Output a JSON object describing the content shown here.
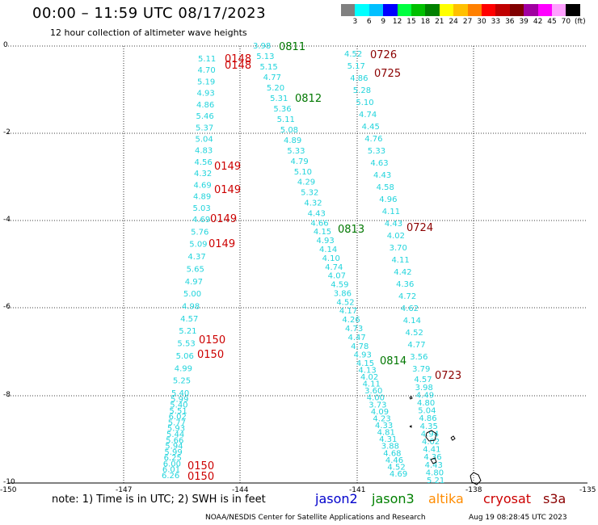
{
  "header": {
    "title": "00:00 – 11:59 UTC 08/17/2023",
    "subtitle": "12 hour collection of altimeter wave heights"
  },
  "legend": {
    "colors": [
      "#808080",
      "#00ffff",
      "#00c0ff",
      "#0000ff",
      "#00ff40",
      "#00c000",
      "#008000",
      "#ffff00",
      "#ffc000",
      "#ff8000",
      "#ff0000",
      "#c00000",
      "#800000",
      "#a000a0",
      "#ff00ff",
      "#ffa0ff",
      "#000000"
    ],
    "labels": [
      "3",
      "6",
      "9",
      "12",
      "15",
      "18",
      "21",
      "24",
      "27",
      "30",
      "33",
      "36",
      "39",
      "42",
      "45",
      "70",
      "(ft)"
    ]
  },
  "axes": {
    "x_ticks": [
      "-150",
      "-147",
      "-144",
      "-141",
      "-138",
      "-135"
    ],
    "y_ticks": [
      "0",
      "-2",
      "-4",
      "-6",
      "-8",
      "-10"
    ]
  },
  "passes": [
    {
      "label": "0148",
      "color": "#cc0000"
    },
    {
      "label": "0148",
      "color": "#cc0000"
    },
    {
      "label": "0149",
      "color": "#cc0000"
    },
    {
      "label": "0149",
      "color": "#cc0000"
    },
    {
      "label": "0149",
      "color": "#cc0000"
    },
    {
      "label": "0149",
      "color": "#cc0000"
    },
    {
      "label": "0150",
      "color": "#cc0000"
    },
    {
      "label": "0150",
      "color": "#cc0000"
    },
    {
      "label": "0150",
      "color": "#cc0000"
    },
    {
      "label": "0150",
      "color": "#cc0000"
    },
    {
      "label": "0811",
      "color": "#007700"
    },
    {
      "label": "0812",
      "color": "#007700"
    },
    {
      "label": "0813",
      "color": "#007700"
    },
    {
      "label": "0814",
      "color": "#007700"
    },
    {
      "label": "0726",
      "color": "#8b0000"
    },
    {
      "label": "0725",
      "color": "#8b0000"
    },
    {
      "label": "0724",
      "color": "#8b0000"
    },
    {
      "label": "0723",
      "color": "#8b0000"
    }
  ],
  "tracks": {
    "track_1": [
      "5.11",
      "4.70",
      "5.19",
      "4.93",
      "4.86",
      "5.46",
      "5.37",
      "5.04",
      "4.83",
      "4.56",
      "4.32",
      "4.69",
      "4.89",
      "5.03",
      "4.69",
      "5.76",
      "5.09",
      "4.37",
      "5.65",
      "4.97",
      "5.00",
      "4.98",
      "4.57",
      "5.21",
      "5.53",
      "5.06",
      "4.99",
      "5.25",
      "5.40",
      "5.99",
      "5.40",
      "5.51",
      "6.02",
      "5.77",
      "5.93",
      "5.44",
      "5.66",
      "5.94",
      "5.99",
      "6.25",
      "6.00",
      "6.01",
      "6.26"
    ],
    "track_2": [
      "3.98",
      "5.13",
      "5.15",
      "4.77",
      "5.20",
      "5.31",
      "5.36",
      "5.11",
      "5.08",
      "4.89",
      "5.33",
      "4.79",
      "5.10",
      "4.29",
      "5.32",
      "4.32",
      "4.43",
      "4.66",
      "4.15",
      "4.93",
      "4.14",
      "4.10",
      "4.74",
      "4.07",
      "4.59",
      "3.86",
      "4.52",
      "4.17",
      "4.26",
      "4.73",
      "4.47",
      "4.78",
      "4.93",
      "4.15",
      "4.13",
      "4.02",
      "4.11",
      "3.60",
      "4.00",
      "3.73",
      "4.09",
      "4.23",
      "4.33",
      "4.81",
      "4.31",
      "3.88",
      "4.68",
      "4.46",
      "4.52",
      "4.69"
    ],
    "track_3": [
      "4.52",
      "5.17",
      "4.86",
      "5.28",
      "5.10",
      "4.74",
      "4.45",
      "4.76",
      "5.33",
      "4.63",
      "4.43",
      "4.58",
      "4.96",
      "4.11",
      "4.43",
      "4.02",
      "3.70",
      "4.11",
      "4.42",
      "4.36",
      "4.72",
      "4.62",
      "4.14",
      "4.52",
      "4.77",
      "3.56",
      "3.79",
      "4.57",
      "3.98",
      "4.49",
      "4.80",
      "5.04",
      "4.86",
      "4.35",
      "4.94",
      "4.02",
      "4.41",
      "4.36",
      "4.43",
      "4.80",
      "5.21"
    ]
  },
  "footer": {
    "note": "note: 1) Time is in UTC; 2) SWH is in feet",
    "sat_jason2": "jason2",
    "sat_jason3": "jason3",
    "sat_altika": "altika",
    "sat_cryosat": "cryosat",
    "sat_s3a": "s3a",
    "credit": "NOAA/NESDIS Center for Satellite Applications and Research",
    "timestamp": "Aug 19 08:28:45 UTC 2023"
  }
}
